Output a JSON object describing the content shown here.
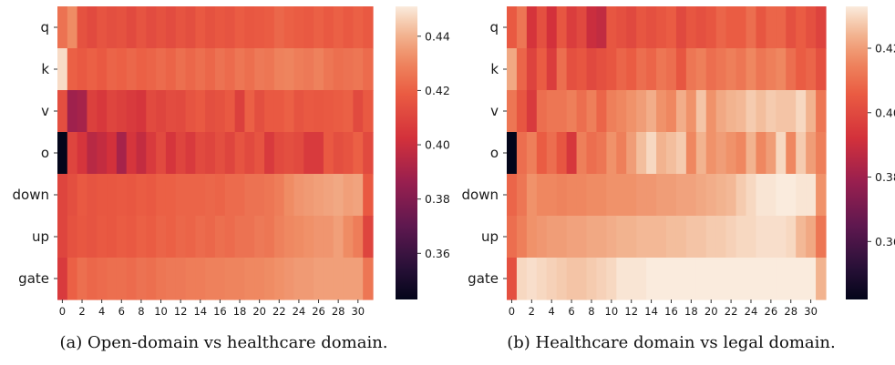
{
  "captions": {
    "a": "(a) Open-domain vs healthcare domain.",
    "b": "(b) Healthcare domain vs legal domain."
  },
  "chart_data": [
    {
      "type": "heatmap",
      "title": "",
      "xlabel": "",
      "ylabel": "",
      "rows": [
        "q",
        "k",
        "v",
        "o",
        "down",
        "up",
        "gate"
      ],
      "x_ticks": [
        0,
        2,
        4,
        6,
        8,
        10,
        12,
        14,
        16,
        18,
        20,
        22,
        24,
        26,
        28,
        30
      ],
      "x_columns": 32,
      "colorbar": {
        "min": 0.343,
        "max": 0.451,
        "ticks": [
          0.36,
          0.38,
          0.4,
          0.42,
          0.44
        ],
        "tick_labels": [
          "0.36",
          "0.38",
          "0.40",
          "0.42",
          "0.44"
        ]
      },
      "values": [
        [
          0.425,
          0.432,
          0.415,
          0.412,
          0.416,
          0.414,
          0.415,
          0.412,
          0.416,
          0.413,
          0.415,
          0.413,
          0.416,
          0.414,
          0.418,
          0.415,
          0.417,
          0.416,
          0.419,
          0.417,
          0.418,
          0.419,
          0.422,
          0.42,
          0.419,
          0.418,
          0.42,
          0.418,
          0.42,
          0.418,
          0.42,
          0.418
        ],
        [
          0.448,
          0.42,
          0.418,
          0.42,
          0.418,
          0.421,
          0.42,
          0.422,
          0.42,
          0.421,
          0.423,
          0.421,
          0.424,
          0.422,
          0.424,
          0.422,
          0.425,
          0.423,
          0.426,
          0.424,
          0.427,
          0.426,
          0.429,
          0.43,
          0.428,
          0.427,
          0.429,
          0.426,
          0.424,
          0.425,
          0.426,
          0.423
        ],
        [
          0.414,
          0.388,
          0.39,
          0.408,
          0.405,
          0.41,
          0.408,
          0.406,
          0.404,
          0.412,
          0.41,
          0.413,
          0.412,
          0.416,
          0.418,
          0.414,
          0.415,
          0.418,
          0.408,
          0.42,
          0.414,
          0.418,
          0.418,
          0.42,
          0.416,
          0.418,
          0.417,
          0.418,
          0.419,
          0.42,
          0.412,
          0.418
        ],
        [
          0.343,
          0.41,
          0.404,
          0.395,
          0.398,
          0.402,
          0.39,
          0.404,
          0.398,
          0.406,
          0.412,
          0.404,
          0.41,
          0.406,
          0.412,
          0.41,
          0.414,
          0.41,
          0.416,
          0.412,
          0.416,
          0.406,
          0.412,
          0.414,
          0.412,
          0.406,
          0.406,
          0.418,
          0.414,
          0.416,
          0.42,
          0.412
        ],
        [
          0.41,
          0.414,
          0.418,
          0.416,
          0.417,
          0.417,
          0.418,
          0.417,
          0.419,
          0.418,
          0.42,
          0.42,
          0.421,
          0.421,
          0.421,
          0.422,
          0.421,
          0.423,
          0.423,
          0.425,
          0.425,
          0.426,
          0.428,
          0.432,
          0.434,
          0.435,
          0.436,
          0.437,
          0.438,
          0.436,
          0.437,
          0.418
        ],
        [
          0.41,
          0.415,
          0.417,
          0.416,
          0.418,
          0.417,
          0.419,
          0.418,
          0.42,
          0.419,
          0.421,
          0.42,
          0.422,
          0.421,
          0.423,
          0.422,
          0.424,
          0.423,
          0.425,
          0.425,
          0.427,
          0.426,
          0.429,
          0.431,
          0.432,
          0.433,
          0.434,
          0.434,
          0.436,
          0.432,
          0.428,
          0.41
        ],
        [
          0.406,
          0.42,
          0.424,
          0.422,
          0.423,
          0.424,
          0.424,
          0.423,
          0.425,
          0.424,
          0.426,
          0.427,
          0.427,
          0.428,
          0.428,
          0.429,
          0.429,
          0.43,
          0.43,
          0.431,
          0.431,
          0.432,
          0.433,
          0.434,
          0.435,
          0.435,
          0.436,
          0.436,
          0.436,
          0.436,
          0.436,
          0.426
        ]
      ]
    },
    {
      "type": "heatmap",
      "title": "",
      "xlabel": "",
      "ylabel": "",
      "rows": [
        "q",
        "k",
        "v",
        "o",
        "down",
        "up",
        "gate"
      ],
      "x_ticks": [
        0,
        2,
        4,
        6,
        8,
        10,
        12,
        14,
        16,
        18,
        20,
        22,
        24,
        26,
        28,
        30
      ],
      "x_columns": 32,
      "colorbar": {
        "min": 0.342,
        "max": 0.433,
        "ticks": [
          0.36,
          0.38,
          0.4,
          0.42
        ],
        "tick_labels": [
          "0.36",
          "0.38",
          "0.40",
          "0.42"
        ]
      },
      "values": [
        [
          0.405,
          0.412,
          0.393,
          0.402,
          0.392,
          0.404,
          0.396,
          0.4,
          0.39,
          0.388,
          0.404,
          0.402,
          0.4,
          0.404,
          0.402,
          0.404,
          0.406,
          0.4,
          0.404,
          0.402,
          0.404,
          0.408,
          0.406,
          0.406,
          0.41,
          0.404,
          0.408,
          0.408,
          0.402,
          0.406,
          0.402,
          0.398
        ],
        [
          0.422,
          0.408,
          0.398,
          0.406,
          0.396,
          0.41,
          0.402,
          0.404,
          0.4,
          0.402,
          0.404,
          0.408,
          0.406,
          0.41,
          0.408,
          0.412,
          0.41,
          0.404,
          0.412,
          0.414,
          0.41,
          0.412,
          0.414,
          0.412,
          0.416,
          0.412,
          0.414,
          0.416,
          0.41,
          0.406,
          0.408,
          0.402
        ],
        [
          0.412,
          0.404,
          0.395,
          0.41,
          0.412,
          0.412,
          0.414,
          0.41,
          0.414,
          0.408,
          0.414,
          0.416,
          0.418,
          0.42,
          0.423,
          0.418,
          0.416,
          0.423,
          0.418,
          0.427,
          0.418,
          0.422,
          0.424,
          0.425,
          0.428,
          0.426,
          0.428,
          0.427,
          0.427,
          0.43,
          0.424,
          0.412
        ],
        [
          0.342,
          0.41,
          0.414,
          0.406,
          0.41,
          0.404,
          0.394,
          0.414,
          0.41,
          0.412,
          0.418,
          0.414,
          0.42,
          0.426,
          0.43,
          0.424,
          0.426,
          0.428,
          0.416,
          0.424,
          0.418,
          0.42,
          0.418,
          0.416,
          0.424,
          0.416,
          0.42,
          0.43,
          0.416,
          0.428,
          0.42,
          0.414
        ],
        [
          0.408,
          0.412,
          0.418,
          0.416,
          0.416,
          0.415,
          0.416,
          0.416,
          0.417,
          0.417,
          0.418,
          0.418,
          0.418,
          0.419,
          0.419,
          0.42,
          0.42,
          0.421,
          0.421,
          0.422,
          0.423,
          0.424,
          0.425,
          0.428,
          0.43,
          0.432,
          0.432,
          0.433,
          0.433,
          0.432,
          0.432,
          0.418
        ],
        [
          0.41,
          0.414,
          0.418,
          0.419,
          0.42,
          0.42,
          0.421,
          0.421,
          0.422,
          0.422,
          0.423,
          0.424,
          0.424,
          0.425,
          0.425,
          0.425,
          0.426,
          0.426,
          0.427,
          0.427,
          0.428,
          0.428,
          0.429,
          0.43,
          0.43,
          0.431,
          0.431,
          0.431,
          0.43,
          0.425,
          0.422,
          0.412
        ],
        [
          0.402,
          0.43,
          0.431,
          0.43,
          0.429,
          0.428,
          0.427,
          0.427,
          0.428,
          0.429,
          0.43,
          0.432,
          0.432,
          0.432,
          0.433,
          0.433,
          0.433,
          0.433,
          0.434,
          0.434,
          0.434,
          0.435,
          0.435,
          0.435,
          0.435,
          0.435,
          0.435,
          0.435,
          0.435,
          0.435,
          0.435,
          0.424
        ]
      ]
    }
  ]
}
